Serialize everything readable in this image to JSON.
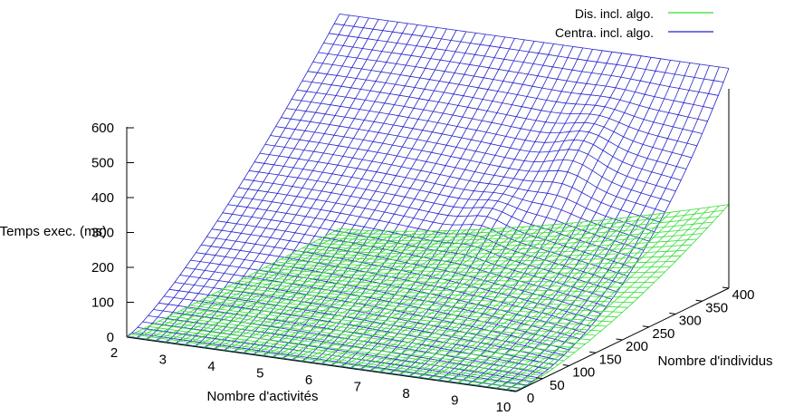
{
  "chart_data": {
    "type": "surface3d",
    "legend": {
      "placement": "top-right"
    },
    "series": [
      {
        "name": "Dis. incl. algo.",
        "color": "#33dd33"
      },
      {
        "name": "Centra. incl. algo.",
        "color": "#2222cc"
      }
    ],
    "x_axis": {
      "label": "Nombre d'activités",
      "range": [
        2,
        10
      ],
      "ticks": [
        "2",
        "3",
        "4",
        "5",
        "6",
        "7",
        "8",
        "9",
        "10"
      ]
    },
    "y_axis": {
      "label": "Nombre d'individus",
      "range": [
        0,
        400
      ],
      "ticks": [
        "0",
        "50",
        "100",
        "150",
        "200",
        "250",
        "300",
        "350",
        "400"
      ]
    },
    "z_axis": {
      "label": "Temps exec. (ms)",
      "range": [
        0,
        600
      ],
      "ticks": [
        "0",
        "100",
        "200",
        "300",
        "400",
        "500",
        "600"
      ]
    },
    "surfaces": {
      "centra_incl_algo": {
        "description_points": [
          {
            "activities": 2,
            "individuals": 400,
            "ms": 630
          },
          {
            "activities": 10,
            "individuals": 400,
            "ms": 640
          },
          {
            "activities": 10,
            "individuals": 200,
            "ms": 180
          },
          {
            "activities": 2,
            "individuals": 0,
            "ms": 5
          },
          {
            "activities": 10,
            "individuals": 0,
            "ms": 5
          }
        ]
      },
      "dis_incl_algo": {
        "description_points": [
          {
            "activities": 2,
            "individuals": 400,
            "ms": 30
          },
          {
            "activities": 10,
            "individuals": 400,
            "ms": 240
          },
          {
            "activities": 2,
            "individuals": 0,
            "ms": 2
          },
          {
            "activities": 10,
            "individuals": 0,
            "ms": 2
          }
        ]
      }
    }
  }
}
